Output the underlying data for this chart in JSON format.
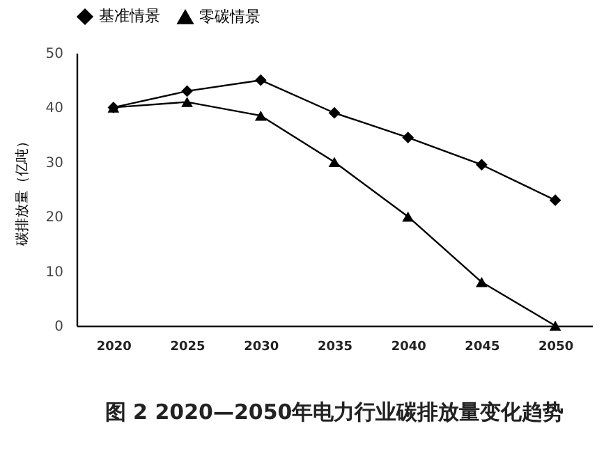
{
  "chart_data": {
    "type": "line",
    "title": "图 2 2020—2050年电力行业碳排放量变化趋势",
    "ylabel": "碳排放量（亿吨）",
    "categories": [
      "2020",
      "2025",
      "2030",
      "2035",
      "2040",
      "2045",
      "2050"
    ],
    "series": [
      {
        "name": "基准情景",
        "color": "#000000",
        "marker": "diamond",
        "values": [
          40,
          43,
          45,
          39,
          34.5,
          29.5,
          23
        ]
      },
      {
        "name": "零碳情景",
        "color": "#000000",
        "marker": "triangle",
        "values": [
          40,
          41,
          38.5,
          30,
          20,
          8,
          0
        ]
      }
    ],
    "ylim": [
      0,
      50
    ],
    "yticks": [
      0,
      10,
      20,
      30,
      40,
      50
    ],
    "grid": false,
    "legend": "top",
    "line_style": "solid"
  }
}
